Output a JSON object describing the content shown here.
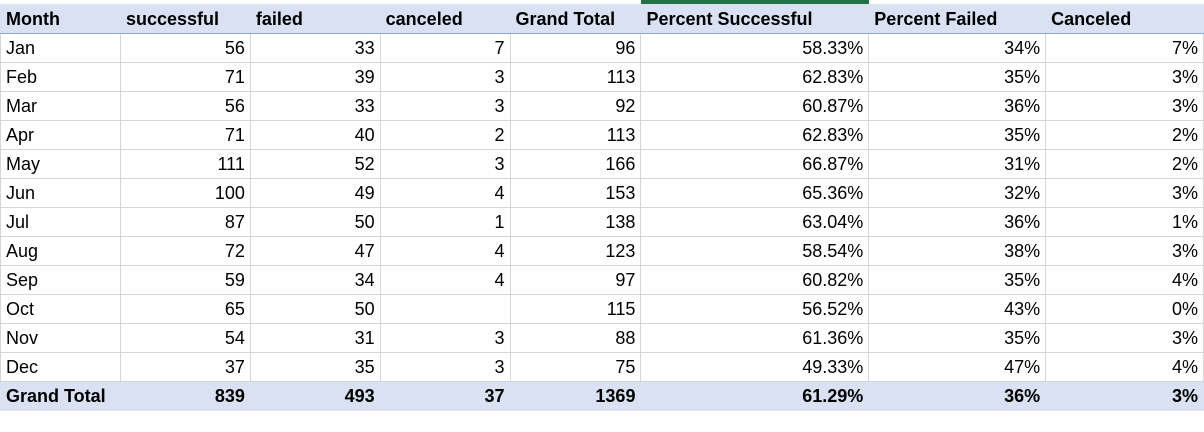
{
  "headers": [
    "Month",
    "successful",
    "failed",
    "canceled",
    "Grand Total",
    "Percent Successful",
    "Percent Failed",
    "Canceled"
  ],
  "rows": [
    [
      "Jan",
      "56",
      "33",
      "7",
      "96",
      "58.33%",
      "34%",
      "7%"
    ],
    [
      "Feb",
      "71",
      "39",
      "3",
      "113",
      "62.83%",
      "35%",
      "3%"
    ],
    [
      "Mar",
      "56",
      "33",
      "3",
      "92",
      "60.87%",
      "36%",
      "3%"
    ],
    [
      "Apr",
      "71",
      "40",
      "2",
      "113",
      "62.83%",
      "35%",
      "2%"
    ],
    [
      "May",
      "111",
      "52",
      "3",
      "166",
      "66.87%",
      "31%",
      "2%"
    ],
    [
      "Jun",
      "100",
      "49",
      "4",
      "153",
      "65.36%",
      "32%",
      "3%"
    ],
    [
      "Jul",
      "87",
      "50",
      "1",
      "138",
      "63.04%",
      "36%",
      "1%"
    ],
    [
      "Aug",
      "72",
      "47",
      "4",
      "123",
      "58.54%",
      "38%",
      "3%"
    ],
    [
      "Sep",
      "59",
      "34",
      "4",
      "97",
      "60.82%",
      "35%",
      "4%"
    ],
    [
      "Oct",
      "65",
      "50",
      "",
      "115",
      "56.52%",
      "43%",
      "0%"
    ],
    [
      "Nov",
      "54",
      "31",
      "3",
      "88",
      "61.36%",
      "35%",
      "3%"
    ],
    [
      "Dec",
      "37",
      "35",
      "3",
      "75",
      "49.33%",
      "47%",
      "4%"
    ]
  ],
  "total": [
    "Grand Total",
    "839",
    "493",
    "37",
    "1369",
    "61.29%",
    "36%",
    "3%"
  ],
  "colors": {
    "header_bg": "#d9e1f2",
    "accent": "#217346",
    "gridline": "#d6d6d6",
    "header_border": "#8ea9db"
  }
}
